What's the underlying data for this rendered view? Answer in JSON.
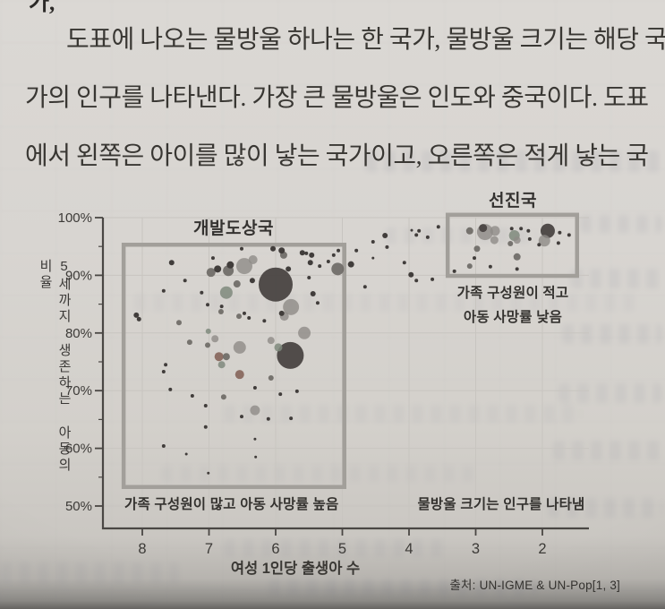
{
  "page": {
    "top_fragment": "가,",
    "paragraph_lines": [
      "도표에 나오는 물방울 하나는 한 국가, 물방울 크기는 해당 국",
      "가의 인구를 나타낸다. 가장 큰 물방울은 인도와 중국이다. 도표",
      "에서 왼쪽은 아이를 많이 낳는 국가이고, 오른쪽은 적게 낳는 국"
    ],
    "source": "출처: UN-IGME & UN-Pop[1, 3]"
  },
  "chart_data": {
    "type": "scatter",
    "title_developing": "개발도상국",
    "title_developed": "선진국",
    "xlabel": "여성 1인당 출생아 수",
    "ylabel": "5세까지 생존하는 아동의 비율",
    "annotation_developing": "가족 구성원이 많고 아동 사망률 높음",
    "annotation_developed": [
      "가족 구성원이 적고",
      "아동 사망률 낮음"
    ],
    "annotation_bubble_size": "물방울 크기는 인구를 나타냄",
    "x_ticks": [
      8,
      7,
      6,
      5,
      4,
      3,
      2
    ],
    "y_ticks": [
      "100%",
      "90%",
      "80%",
      "70%",
      "60%",
      "50%"
    ],
    "x_axis_reversed": true,
    "xlim": [
      8.6,
      1.3
    ],
    "ylim": [
      46,
      100
    ],
    "grid": true,
    "legend_note": "물방울 크기 = 인구",
    "largest_bubbles": [
      "인도",
      "중국"
    ],
    "regions": [
      {
        "name": "developing",
        "x1": 8.28,
        "x2": 4.97,
        "y1": 95.3,
        "y2": 53.3
      },
      {
        "name": "developed",
        "x1": 3.42,
        "x2": 1.48,
        "y1": 100.5,
        "y2": 89.9
      }
    ],
    "palette": {
      "c0": "#413d3b",
      "c1": "#6e6a66",
      "c2": "#8f8b87",
      "c3": "#7f8a7d",
      "c4": "#85645a",
      "c5": "#4a4442"
    },
    "bubbles": [
      [
        6.0,
        88.4,
        19,
        "c5"
      ],
      [
        5.78,
        76.1,
        15,
        "c5"
      ],
      [
        5.77,
        84.5,
        9,
        "c2"
      ],
      [
        5.57,
        80.0,
        7,
        "c2"
      ],
      [
        5.87,
        82.9,
        5,
        "c2"
      ],
      [
        5.96,
        77.5,
        4.5,
        "c3"
      ],
      [
        6.74,
        87.0,
        7,
        "c3"
      ],
      [
        6.31,
        66.6,
        5.5,
        "c2"
      ],
      [
        6.97,
        90.5,
        5,
        "c1"
      ],
      [
        6.68,
        91.8,
        4,
        "c0"
      ],
      [
        6.47,
        91.6,
        9,
        "c2"
      ],
      [
        6.71,
        90.8,
        6,
        "c1"
      ],
      [
        6.87,
        91.1,
        4,
        "c0"
      ],
      [
        6.94,
        93.0,
        2,
        "c0"
      ],
      [
        7.56,
        92.2,
        3,
        "c0"
      ],
      [
        6.34,
        92.7,
        5,
        "c2"
      ],
      [
        6.58,
        88.5,
        4,
        "c1"
      ],
      [
        6.35,
        89.1,
        3,
        "c0"
      ],
      [
        6.04,
        94.6,
        3,
        "c0"
      ],
      [
        5.88,
        93.5,
        4,
        "c1"
      ],
      [
        5.81,
        91.1,
        3,
        "c0"
      ],
      [
        5.6,
        93.9,
        3,
        "c0"
      ],
      [
        5.46,
        93.5,
        3,
        "c0"
      ],
      [
        5.48,
        92.2,
        3,
        "c0"
      ],
      [
        5.44,
        86.8,
        3,
        "c0"
      ],
      [
        5.07,
        91.1,
        7,
        "c1"
      ],
      [
        7.68,
        87.3,
        2,
        "c0"
      ],
      [
        8.09,
        83.1,
        3,
        "c0"
      ],
      [
        8.05,
        82.4,
        2.5,
        "c0"
      ],
      [
        7.45,
        81.8,
        3,
        "c1"
      ],
      [
        7.29,
        78.4,
        3,
        "c1"
      ],
      [
        7.02,
        84.9,
        2,
        "c0"
      ],
      [
        7.11,
        87.0,
        2,
        "c0"
      ],
      [
        6.82,
        83.7,
        3,
        "c1"
      ],
      [
        6.81,
        84.6,
        2,
        "c0"
      ],
      [
        6.55,
        82.9,
        3,
        "c1"
      ],
      [
        6.47,
        83.4,
        2,
        "c0"
      ],
      [
        7.01,
        80.3,
        3,
        "c3"
      ],
      [
        6.91,
        79.0,
        4,
        "c2"
      ],
      [
        7.02,
        77.9,
        3,
        "c1"
      ],
      [
        6.85,
        75.9,
        5,
        "c4"
      ],
      [
        6.81,
        74.5,
        4,
        "c3"
      ],
      [
        6.74,
        75.9,
        4,
        "c1"
      ],
      [
        6.54,
        77.5,
        7,
        "c2"
      ],
      [
        6.07,
        78.7,
        4,
        "c2"
      ],
      [
        5.91,
        83.4,
        3,
        "c0"
      ],
      [
        6.51,
        94.6,
        2,
        "c0"
      ],
      [
        5.91,
        94.3,
        3.5,
        "c0"
      ],
      [
        5.34,
        91.6,
        2,
        "c0"
      ],
      [
        5.21,
        92.4,
        2,
        "c0"
      ],
      [
        5.13,
        93.5,
        2,
        "c0"
      ],
      [
        5.06,
        94.3,
        2,
        "c0"
      ],
      [
        4.79,
        94.3,
        2,
        "c0"
      ],
      [
        5.54,
        93.8,
        2,
        "c0"
      ],
      [
        6.4,
        82.6,
        2,
        "c0"
      ],
      [
        6.17,
        82.1,
        2,
        "c0"
      ],
      [
        5.37,
        85.2,
        2,
        "c0"
      ],
      [
        5.5,
        89.6,
        2,
        "c0"
      ],
      [
        7.36,
        89.1,
        2,
        "c0"
      ],
      [
        7.65,
        74.5,
        2,
        "c0"
      ],
      [
        6.54,
        72.8,
        5,
        "c4"
      ],
      [
        6.07,
        72.2,
        3,
        "c1"
      ],
      [
        6.78,
        68.9,
        3,
        "c1"
      ],
      [
        6.31,
        70.5,
        2,
        "c0"
      ],
      [
        5.93,
        69.4,
        2,
        "c0"
      ],
      [
        7.68,
        73.3,
        2,
        "c0"
      ],
      [
        7.58,
        70.2,
        2,
        "c0"
      ],
      [
        7.25,
        69.1,
        2,
        "c0"
      ],
      [
        7.05,
        67.4,
        2,
        "c0"
      ],
      [
        6.51,
        65.5,
        2,
        "c0"
      ],
      [
        7.05,
        63.7,
        2,
        "c0"
      ],
      [
        7.68,
        60.4,
        2,
        "c0"
      ],
      [
        7.34,
        59.0,
        1.5,
        "c0"
      ],
      [
        7.01,
        55.7,
        1.5,
        "c0"
      ],
      [
        6.3,
        58.5,
        1.5,
        "c0"
      ],
      [
        6.31,
        61.6,
        1.5,
        "c0"
      ],
      [
        6.11,
        65.1,
        2,
        "c0"
      ],
      [
        5.77,
        65.2,
        2,
        "c0"
      ],
      [
        5.68,
        69.9,
        2,
        "c0"
      ],
      [
        4.87,
        91.9,
        3.5,
        "c0"
      ],
      [
        4.66,
        88.0,
        2,
        "c0"
      ],
      [
        4.54,
        95.8,
        2,
        "c0"
      ],
      [
        4.36,
        96.9,
        3,
        "c0"
      ],
      [
        4.07,
        92.2,
        2,
        "c0"
      ],
      [
        3.97,
        90.1,
        3,
        "c0"
      ],
      [
        3.89,
        89.1,
        2,
        "c0"
      ],
      [
        3.85,
        97.7,
        2,
        "c0"
      ],
      [
        3.72,
        96.6,
        2,
        "c0"
      ],
      [
        3.65,
        89.3,
        2,
        "c0"
      ],
      [
        3.56,
        98.4,
        2,
        "c0"
      ],
      [
        3.96,
        97.8,
        1.5,
        "c0"
      ],
      [
        3.89,
        97.0,
        2,
        "c0"
      ],
      [
        4.33,
        94.9,
        2,
        "c0"
      ],
      [
        4.54,
        93.0,
        1.5,
        "c0"
      ],
      [
        2.86,
        97.5,
        9,
        "c2"
      ],
      [
        2.89,
        98.2,
        4.5,
        "c5"
      ],
      [
        2.71,
        97.7,
        5.5,
        "c2"
      ],
      [
        2.72,
        96.1,
        4.5,
        "c2"
      ],
      [
        2.98,
        94.6,
        3.5,
        "c1"
      ],
      [
        3.09,
        97.7,
        4,
        "c1"
      ],
      [
        2.42,
        96.9,
        6,
        "c3"
      ],
      [
        2.38,
        96.1,
        4,
        "c2"
      ],
      [
        2.48,
        95.5,
        3,
        "c1"
      ],
      [
        2.46,
        98.1,
        2,
        "c0"
      ],
      [
        2.32,
        98.1,
        2,
        "c0"
      ],
      [
        2.21,
        97.7,
        2,
        "c0"
      ],
      [
        2.19,
        96.3,
        2,
        "c0"
      ],
      [
        1.92,
        97.7,
        8,
        "c5"
      ],
      [
        1.97,
        96.0,
        6.5,
        "c2"
      ],
      [
        2.05,
        95.3,
        2,
        "c0"
      ],
      [
        1.74,
        97.4,
        2,
        "c0"
      ],
      [
        1.76,
        95.6,
        2,
        "c0"
      ],
      [
        2.38,
        93.2,
        4,
        "c1"
      ],
      [
        3.02,
        93.0,
        2,
        "c0"
      ],
      [
        3.09,
        91.6,
        3,
        "c1"
      ],
      [
        2.78,
        91.5,
        2,
        "c0"
      ],
      [
        2.38,
        91.1,
        2,
        "c0"
      ],
      [
        3.32,
        90.7,
        2,
        "c0"
      ],
      [
        1.6,
        97.0,
        2,
        "c0"
      ]
    ]
  }
}
